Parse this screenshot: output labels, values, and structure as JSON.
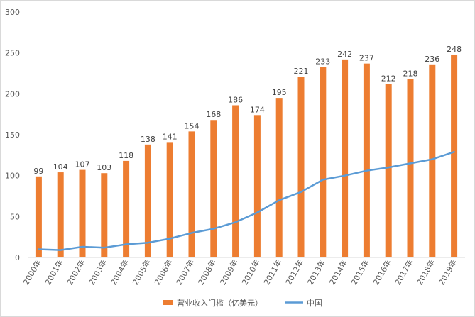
{
  "chart_data": {
    "type": "bar",
    "categories": [
      "2000年",
      "2001年",
      "2002年",
      "2003年",
      "2004年",
      "2005年",
      "2006年",
      "2007年",
      "2008年",
      "2009年",
      "2010年",
      "2011年",
      "2012年",
      "2013年",
      "2014年",
      "2015年",
      "2016年",
      "2017年",
      "2018年",
      "2019年"
    ],
    "series": [
      {
        "name": "营业收入门槛（亿美元）",
        "type": "bar",
        "color": "#ED7D31",
        "values": [
          99,
          104,
          107,
          103,
          118,
          138,
          141,
          154,
          168,
          186,
          174,
          195,
          221,
          233,
          242,
          237,
          212,
          218,
          236,
          248
        ],
        "data_labels": [
          "99",
          "104",
          "107",
          "103",
          "118",
          "138",
          "141",
          "154",
          "168",
          "186",
          "174",
          "195",
          "221",
          "233",
          "242",
          "237",
          "212",
          "218",
          "236",
          "248"
        ]
      },
      {
        "name": "中国",
        "type": "line",
        "color": "#5B9BD5",
        "values": [
          10,
          9,
          13,
          12,
          16,
          18,
          23,
          30,
          35,
          43,
          55,
          70,
          80,
          95,
          100,
          106,
          110,
          115,
          120,
          129
        ]
      }
    ],
    "y_ticks": [
      "0",
      "50",
      "100",
      "150",
      "200",
      "250",
      "300"
    ],
    "ylim": [
      0,
      300
    ],
    "grid": false,
    "legend_position": "bottom"
  }
}
